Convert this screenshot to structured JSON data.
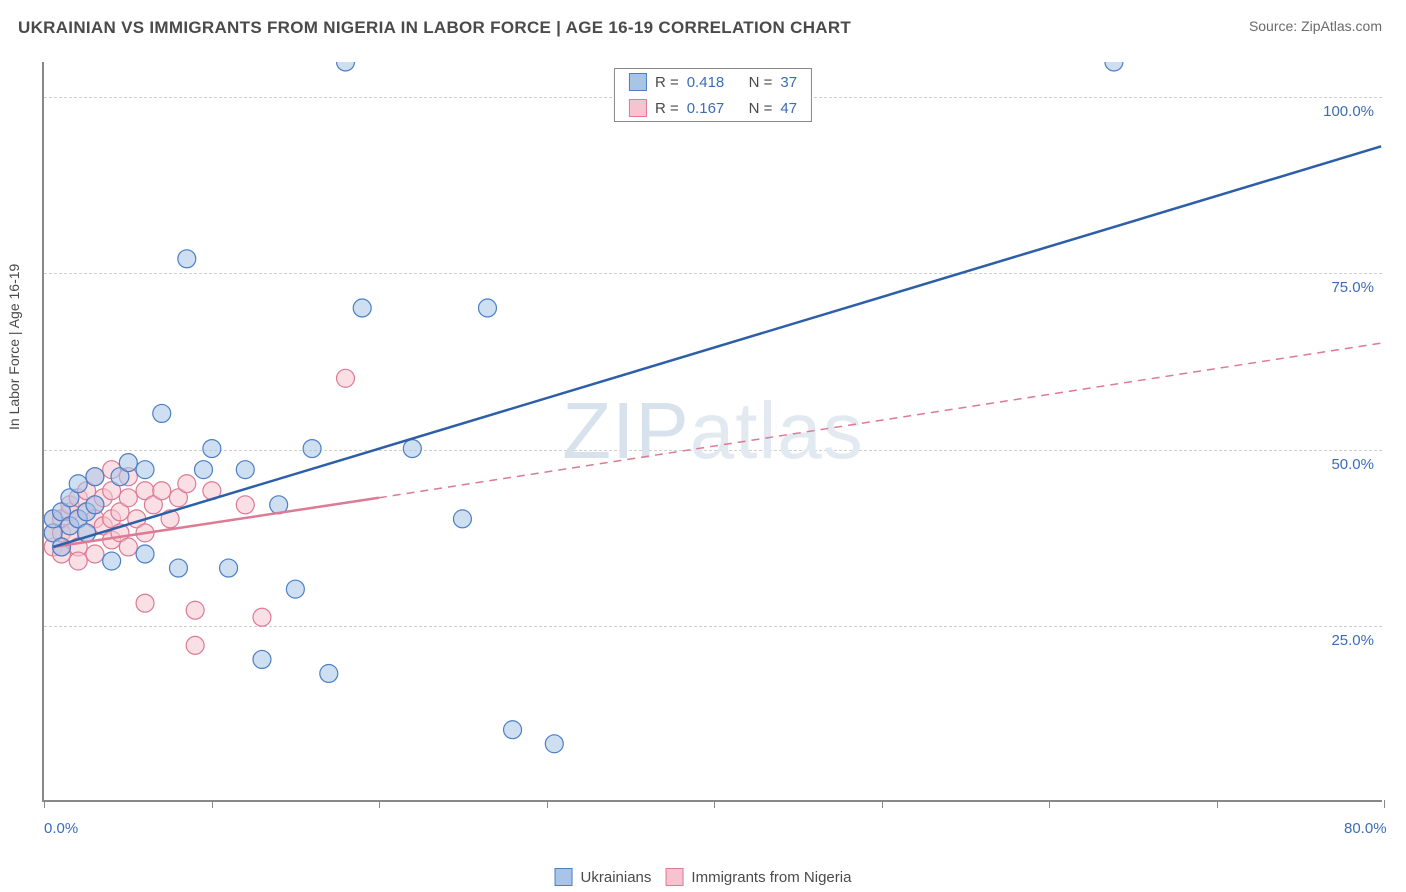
{
  "header": {
    "title": "UKRAINIAN VS IMMIGRANTS FROM NIGERIA IN LABOR FORCE | AGE 16-19 CORRELATION CHART",
    "source": "Source: ZipAtlas.com"
  },
  "chart": {
    "type": "scatter",
    "ylabel": "In Labor Force | Age 16-19",
    "watermark": "ZIPatlas",
    "xlim": [
      0,
      80
    ],
    "ylim": [
      0,
      105
    ],
    "x_ticks": [
      0,
      10,
      20,
      30,
      40,
      50,
      60,
      70,
      80
    ],
    "x_tick_labels": {
      "0": "0.0%",
      "80": "80.0%"
    },
    "y_grid": [
      25,
      50,
      75,
      100
    ],
    "y_tick_labels": {
      "25": "25.0%",
      "50": "50.0%",
      "75": "75.0%",
      "100": "100.0%"
    },
    "background_color": "#ffffff",
    "grid_color": "#cfcfcf",
    "axis_color": "#888888",
    "label_color": "#3b6db5",
    "marker_radius": 9,
    "marker_opacity": 0.55,
    "series": {
      "ukr": {
        "label": "Ukrainians",
        "fill": "#a8c5e8",
        "stroke": "#4a7fc7",
        "r_label": "R =",
        "r": "0.418",
        "n_label": "N =",
        "n": "37",
        "trend": {
          "x1": 0.5,
          "y1": 36,
          "x2": 80,
          "y2": 93,
          "width": 2.5,
          "dash": "none"
        },
        "points": [
          [
            0.5,
            38
          ],
          [
            0.5,
            40
          ],
          [
            1,
            41
          ],
          [
            1,
            36
          ],
          [
            1.5,
            43
          ],
          [
            1.5,
            39
          ],
          [
            2,
            45
          ],
          [
            2,
            40
          ],
          [
            2.5,
            41
          ],
          [
            2.5,
            38
          ],
          [
            3,
            46
          ],
          [
            3,
            42
          ],
          [
            4,
            34
          ],
          [
            4.5,
            46
          ],
          [
            5,
            48
          ],
          [
            6,
            47
          ],
          [
            6,
            35
          ],
          [
            7,
            55
          ],
          [
            8,
            33
          ],
          [
            8.5,
            77
          ],
          [
            9.5,
            47
          ],
          [
            10,
            50
          ],
          [
            11,
            33
          ],
          [
            12,
            47
          ],
          [
            13,
            20
          ],
          [
            14,
            42
          ],
          [
            15,
            30
          ],
          [
            16,
            50
          ],
          [
            17,
            18
          ],
          [
            18,
            105
          ],
          [
            19,
            70
          ],
          [
            22,
            50
          ],
          [
            25,
            40
          ],
          [
            26.5,
            70
          ],
          [
            28,
            10
          ],
          [
            30.5,
            8
          ],
          [
            64,
            105
          ]
        ]
      },
      "nig": {
        "label": "Immigrants from Nigeria",
        "fill": "#f5c4d0",
        "stroke": "#dd7a94",
        "r_label": "R =",
        "r": "0.167",
        "n_label": "N =",
        "n": "47",
        "trend_solid": {
          "x1": 0.5,
          "y1": 36,
          "x2": 20,
          "y2": 43,
          "width": 2.5
        },
        "trend_dash": {
          "x1": 20,
          "y1": 43,
          "x2": 80,
          "y2": 65,
          "width": 1.5
        },
        "points": [
          [
            0.5,
            36
          ],
          [
            0.5,
            38
          ],
          [
            0.5,
            40
          ],
          [
            1,
            36
          ],
          [
            1,
            38
          ],
          [
            1,
            40
          ],
          [
            1,
            35
          ],
          [
            1.5,
            41
          ],
          [
            1.5,
            38
          ],
          [
            1.5,
            42
          ],
          [
            2,
            40
          ],
          [
            2,
            43
          ],
          [
            2,
            36
          ],
          [
            2,
            34
          ],
          [
            2.5,
            41
          ],
          [
            2.5,
            44
          ],
          [
            2.5,
            38
          ],
          [
            3,
            42
          ],
          [
            3,
            40
          ],
          [
            3,
            46
          ],
          [
            3,
            35
          ],
          [
            3.5,
            43
          ],
          [
            3.5,
            39
          ],
          [
            4,
            44
          ],
          [
            4,
            40
          ],
          [
            4,
            47
          ],
          [
            4,
            37
          ],
          [
            4.5,
            41
          ],
          [
            4.5,
            38
          ],
          [
            5,
            43
          ],
          [
            5,
            46
          ],
          [
            5,
            36
          ],
          [
            5.5,
            40
          ],
          [
            6,
            44
          ],
          [
            6,
            38
          ],
          [
            6,
            28
          ],
          [
            6.5,
            42
          ],
          [
            7,
            44
          ],
          [
            7.5,
            40
          ],
          [
            8,
            43
          ],
          [
            8.5,
            45
          ],
          [
            9,
            27
          ],
          [
            9,
            22
          ],
          [
            10,
            44
          ],
          [
            12,
            42
          ],
          [
            13,
            26
          ],
          [
            18,
            60
          ]
        ]
      }
    }
  }
}
